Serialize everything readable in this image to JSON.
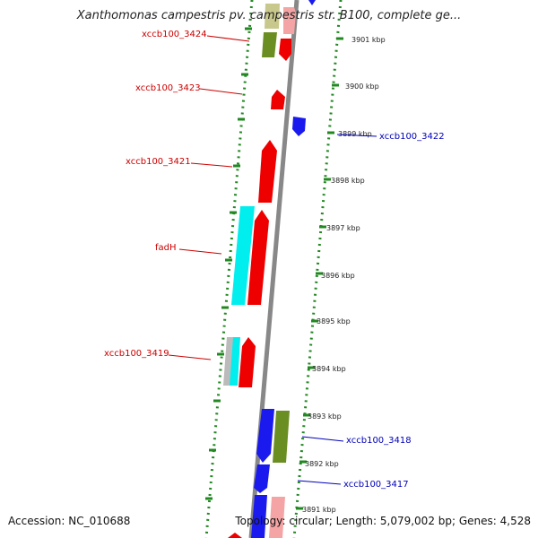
{
  "title": "Xanthomonas campestris pv. campestris str. B100, complete ge...",
  "footer": {
    "accession": "Accession: NC_010688",
    "topology": "Topology: circular; Length: 5,079,002 bp; Genes: 4,528"
  },
  "colors": {
    "backbone": "#888888",
    "tick": "#228822",
    "forward_red": "#ee0000",
    "reverse_blue": "#1a1aee",
    "cyan": "#00eeee",
    "olive": "#6b8e23",
    "pink": "#f4a4a4",
    "khaki": "#c8c88c",
    "grey": "#bbbbbb",
    "label_red": "#cc0000",
    "label_blue": "#0000bb"
  },
  "position_labels": [
    "3901 kbp",
    "3900 kbp",
    "3899 kbp",
    "3898 kbp",
    "3897 kbp",
    "3896 kbp",
    "3895 kbp",
    "3894 kbp",
    "3893 kbp",
    "3892 kbp",
    "3891 kbp"
  ],
  "gene_labels": [
    {
      "text": "xccb100_3424",
      "color": "red"
    },
    {
      "text": "xccb100_3423",
      "color": "red"
    },
    {
      "text": "xccb100_3422",
      "color": "blue"
    },
    {
      "text": "xccb100_3421",
      "color": "red"
    },
    {
      "text": "fadH",
      "color": "red"
    },
    {
      "text": "xccb100_3419",
      "color": "red"
    },
    {
      "text": "xccb100_3418",
      "color": "blue"
    },
    {
      "text": "xccb100_3417",
      "color": "blue"
    }
  ]
}
